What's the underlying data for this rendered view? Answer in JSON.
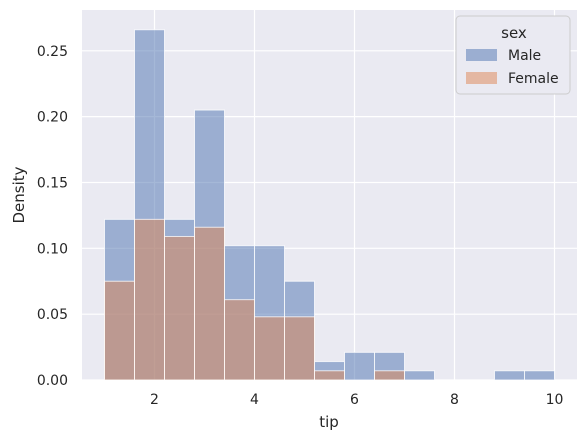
{
  "chart_data": {
    "type": "bar",
    "title": "",
    "xlabel": "tip",
    "ylabel": "Density",
    "xlim": [
      0.55,
      10.45
    ],
    "ylim": [
      0,
      0.281
    ],
    "grid": true,
    "bin_edges": [
      1.0,
      1.6,
      2.2,
      2.8,
      3.4,
      4.0,
      4.6,
      5.2,
      5.8,
      6.4,
      7.0,
      7.6,
      8.2,
      8.8,
      9.4,
      10.0
    ],
    "x_ticks": [
      "2",
      "4",
      "6",
      "8",
      "10"
    ],
    "x_tick_values": [
      2,
      4,
      6,
      8,
      10
    ],
    "y_ticks": [
      "0.00",
      "0.05",
      "0.10",
      "0.15",
      "0.20",
      "0.25"
    ],
    "y_tick_values": [
      0.0,
      0.05,
      0.1,
      0.15,
      0.2,
      0.25
    ],
    "legend": {
      "title": "sex",
      "placement": "top-right"
    },
    "series": [
      {
        "name": "Male",
        "color": "#4c72b0",
        "values": [
          0.122,
          0.266,
          0.122,
          0.205,
          0.102,
          0.102,
          0.075,
          0.014,
          0.021,
          0.021,
          0.007,
          0.0,
          0.0,
          0.007,
          0.007
        ]
      },
      {
        "name": "Female",
        "color": "#dd8452",
        "values": [
          0.075,
          0.122,
          0.109,
          0.116,
          0.061,
          0.048,
          0.048,
          0.007,
          0.0,
          0.007,
          0.0,
          0.0,
          0.0,
          0.0,
          0.0
        ]
      }
    ]
  },
  "colors": {
    "plot_background": "#eaeaf2",
    "grid": "#ffffff",
    "overlap": "#9a8fa6"
  }
}
